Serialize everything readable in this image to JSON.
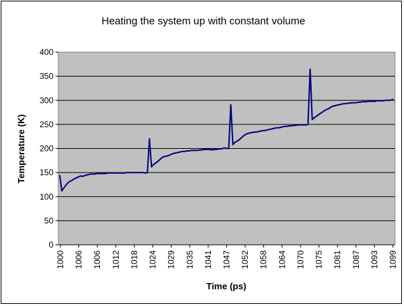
{
  "chart_data": {
    "type": "line",
    "title": "Heating the system up with constant volume",
    "xlabel": "Time (ps)",
    "ylabel": "Temperature (K)",
    "ylim": [
      0,
      400
    ],
    "yticks": [
      0,
      50,
      100,
      150,
      200,
      250,
      300,
      350,
      400
    ],
    "xtick_labels": [
      "1000",
      "1006",
      "1006",
      "1012",
      "1018",
      "1024",
      "1029",
      "1035",
      "1041",
      "1047",
      "1052",
      "1058",
      "1064",
      "1070",
      "1075",
      "1081",
      "1087",
      "1093",
      "1099"
    ],
    "grid": "horizontal",
    "legend": "none",
    "plot_background": "#c0c0c0",
    "line_color": "#000080",
    "series": [
      {
        "values": [
          145,
          112,
          118,
          124,
          129,
          132,
          134,
          137,
          139,
          141,
          143,
          142,
          144,
          145,
          146,
          147,
          147,
          147,
          148,
          148,
          148,
          148,
          148,
          149,
          149,
          149,
          149,
          149,
          149,
          149,
          149,
          149,
          150,
          150,
          150,
          150,
          150,
          150,
          150,
          150,
          150,
          149,
          150,
          220,
          162,
          167,
          170,
          173,
          177,
          181,
          183,
          184,
          185,
          187,
          189,
          190,
          191,
          192,
          193,
          194,
          194,
          195,
          195,
          196,
          196,
          196,
          196,
          197,
          197,
          198,
          198,
          198,
          198,
          197,
          198,
          198,
          199,
          199,
          200,
          201,
          200,
          200,
          291,
          208,
          213,
          215,
          218,
          222,
          226,
          229,
          231,
          232,
          233,
          234,
          234,
          235,
          236,
          237,
          237,
          238,
          239,
          240,
          241,
          242,
          243,
          243,
          244,
          245,
          246,
          246,
          247,
          247,
          248,
          248,
          249,
          249,
          249,
          249,
          249,
          250,
          365,
          260,
          264,
          267,
          270,
          273,
          276,
          279,
          281,
          283,
          286,
          288,
          289,
          290,
          291,
          292,
          293,
          293,
          294,
          294,
          295,
          295,
          295,
          296,
          296,
          297,
          297,
          297,
          298,
          298,
          298,
          298,
          299,
          299,
          299,
          299,
          300,
          300,
          300,
          301,
          302
        ]
      }
    ]
  }
}
